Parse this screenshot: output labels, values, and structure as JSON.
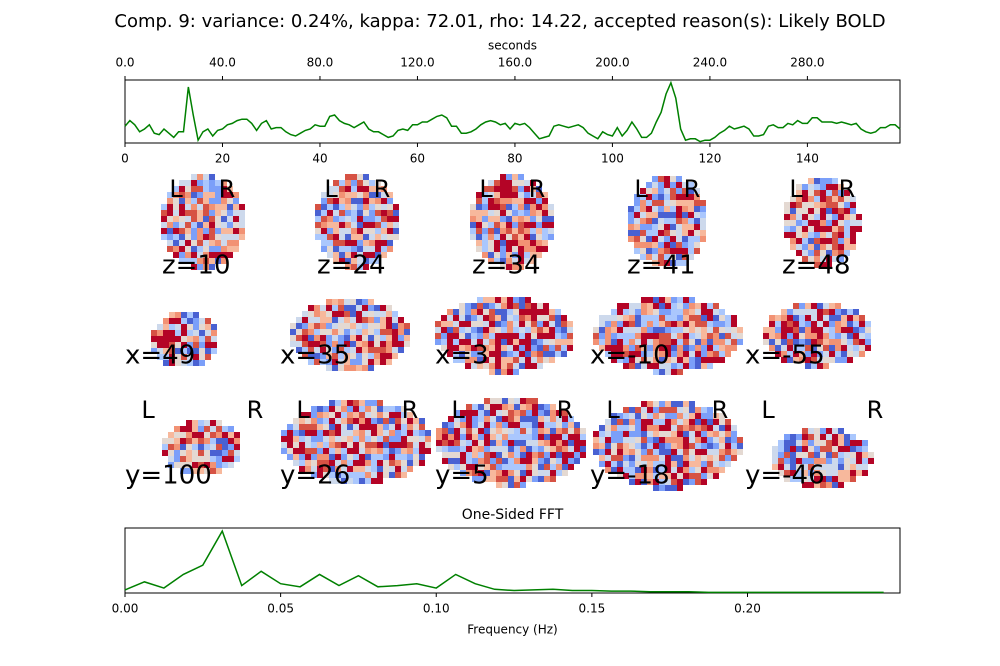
{
  "title": "Comp. 9: variance: 0.24%, kappa: 72.01, rho: 14.22, accepted reason(s): Likely BOLD",
  "chart_data": [
    {
      "type": "line",
      "color": "#008000",
      "xlim": [
        0,
        159
      ],
      "xticks": [
        0,
        20,
        40,
        60,
        80,
        100,
        120,
        140
      ],
      "x2label": "seconds",
      "x2lim": [
        0,
        318
      ],
      "x2ticks": [
        {
          "value": 0,
          "label": "0.0"
        },
        {
          "value": 40,
          "label": "40.0"
        },
        {
          "value": 80,
          "label": "80.0"
        },
        {
          "value": 120,
          "label": "120.0"
        },
        {
          "value": 160,
          "label": "160.0"
        },
        {
          "value": 200,
          "label": "200.0"
        },
        {
          "value": 240,
          "label": "240.0"
        },
        {
          "value": 280,
          "label": "280.0"
        }
      ],
      "ylim": [
        -1,
        3.5
      ],
      "values": [
        0.2,
        0.6,
        0.3,
        -0.2,
        0.0,
        0.3,
        -0.3,
        -0.4,
        0.0,
        -0.3,
        -0.6,
        -0.2,
        -0.2,
        3.0,
        1.0,
        -0.8,
        -0.2,
        0.0,
        -0.5,
        -0.1,
        0.0,
        0.3,
        0.4,
        0.6,
        0.7,
        0.7,
        0.4,
        -0.1,
        0.4,
        0.6,
        0.0,
        0.1,
        0.1,
        -0.2,
        -0.4,
        -0.5,
        -0.3,
        -0.1,
        0.0,
        0.3,
        0.2,
        0.2,
        0.9,
        1.0,
        0.6,
        0.4,
        0.3,
        0.1,
        0.3,
        0.5,
        0.0,
        -0.2,
        -0.2,
        -0.4,
        -0.6,
        -0.5,
        -0.1,
        0.0,
        -0.1,
        0.3,
        0.3,
        0.5,
        0.5,
        0.7,
        0.9,
        1.0,
        0.8,
        0.2,
        0.2,
        -0.3,
        -0.3,
        -0.2,
        0.0,
        0.3,
        0.5,
        0.6,
        0.5,
        0.3,
        0.4,
        0.0,
        0.4,
        0.3,
        0.4,
        0.1,
        -0.3,
        -0.7,
        -0.6,
        -0.5,
        0.2,
        0.3,
        0.2,
        0.1,
        0.2,
        0.3,
        0.1,
        -0.3,
        -0.5,
        -0.7,
        -0.2,
        -0.4,
        -0.5,
        0.1,
        -0.5,
        -0.1,
        0.5,
        0.0,
        -0.6,
        -0.6,
        -0.3,
        0.5,
        1.2,
        2.5,
        3.3,
        2.2,
        0.0,
        -0.8,
        -0.7,
        -0.7,
        -0.9,
        -0.8,
        -0.8,
        -0.6,
        -0.3,
        -0.1,
        0.2,
        0.0,
        0.1,
        0.2,
        0.0,
        -0.5,
        -0.5,
        -0.4,
        0.2,
        0.3,
        0.1,
        0.1,
        0.4,
        0.3,
        0.6,
        0.4,
        0.4,
        0.8,
        0.8,
        0.5,
        0.5,
        0.5,
        0.4,
        0.5,
        0.4,
        0.3,
        0.4,
        0.0,
        -0.2,
        -0.3,
        -0.2,
        0.1,
        0.1,
        0.3,
        0.3,
        0.0
      ]
    },
    {
      "type": "line",
      "title": "One-Sided FFT",
      "xlabel": "Frequency (Hz)",
      "color": "#008000",
      "xlim": [
        0,
        0.249
      ],
      "xticks": [
        {
          "value": 0,
          "label": "0.00"
        },
        {
          "value": 0.05,
          "label": "0.05"
        },
        {
          "value": 0.1,
          "label": "0.10"
        },
        {
          "value": 0.15,
          "label": "0.15"
        },
        {
          "value": 0.2,
          "label": "0.20"
        }
      ],
      "ylim": [
        0,
        1.05
      ],
      "x": [
        0,
        0.00625,
        0.0125,
        0.01875,
        0.025,
        0.03125,
        0.0375,
        0.04375,
        0.05,
        0.05625,
        0.0625,
        0.06875,
        0.075,
        0.08125,
        0.0875,
        0.09375,
        0.1,
        0.10625,
        0.1125,
        0.11875,
        0.125,
        0.13125,
        0.1375,
        0.14375,
        0.15,
        0.15625,
        0.1625,
        0.16875,
        0.175,
        0.18125,
        0.1875,
        0.19375,
        0.2,
        0.20625,
        0.2125,
        0.21875,
        0.225,
        0.23125,
        0.2375,
        0.24375
      ],
      "values": [
        0.05,
        0.18,
        0.08,
        0.3,
        0.45,
        1.0,
        0.12,
        0.35,
        0.15,
        0.1,
        0.3,
        0.12,
        0.28,
        0.1,
        0.12,
        0.15,
        0.08,
        0.3,
        0.15,
        0.06,
        0.04,
        0.05,
        0.06,
        0.04,
        0.04,
        0.03,
        0.03,
        0.02,
        0.02,
        0.02,
        0.01,
        0.01,
        0.01,
        0.01,
        0.01,
        0.01,
        0.01,
        0.01,
        0.01,
        0.01
      ]
    }
  ],
  "brain_slices": {
    "rows": [
      {
        "panels": [
          {
            "label": "z=10",
            "left": "L",
            "right": "R"
          },
          {
            "label": "z=24",
            "left": "L",
            "right": "R"
          },
          {
            "label": "z=34",
            "left": "L",
            "right": "R"
          },
          {
            "label": "z=41",
            "left": "L",
            "right": "R"
          },
          {
            "label": "z=48",
            "left": "L",
            "right": "R"
          }
        ]
      },
      {
        "panels": [
          {
            "label": "x=49"
          },
          {
            "label": "x=35"
          },
          {
            "label": "x=3"
          },
          {
            "label": "x=-10"
          },
          {
            "label": "x=-55"
          }
        ]
      },
      {
        "panels": [
          {
            "label": "y=100",
            "left": "L",
            "right": "R"
          },
          {
            "label": "y=26",
            "left": "L",
            "right": "R"
          },
          {
            "label": "y=5",
            "left": "L",
            "right": "R"
          },
          {
            "label": "y=-18",
            "left": "L",
            "right": "R"
          },
          {
            "label": "y=-46",
            "left": "L",
            "right": "R"
          }
        ]
      }
    ]
  }
}
